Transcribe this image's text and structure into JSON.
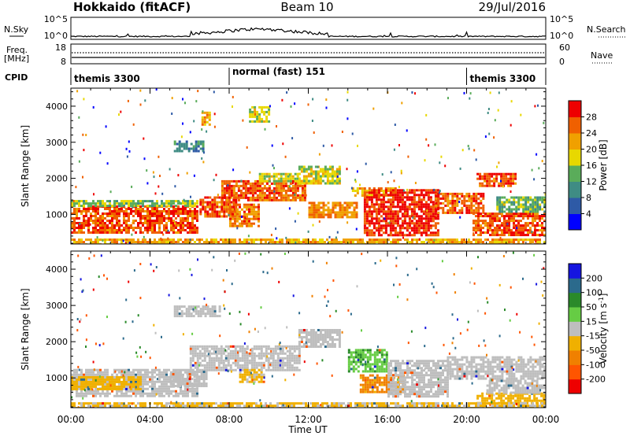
{
  "header": {
    "station": "Hokkaido (fitACF)",
    "beam": "Beam 10",
    "date": "29/Jul/2016"
  },
  "strip_labels": {
    "nsky": "N.Sky",
    "nsky_top": "10^5",
    "nsky_bottom": "10^0",
    "freq_line1": "Freq.",
    "freq_line2": "[MHz]",
    "freq_top": "18",
    "freq_bottom": "8",
    "cpid": "CPID",
    "nsearch": "N.Search",
    "nsearch_top": "10^5",
    "nsearch_bottom": "10^0",
    "nave": "Nave",
    "nave_top": "60",
    "nave_bottom": "0"
  },
  "cpid_segments": [
    {
      "label": "themis 3300",
      "start": 0,
      "end": 8
    },
    {
      "label": "normal (fast) 151",
      "start": 8,
      "end": 20
    },
    {
      "label": "themis 3300",
      "start": 20,
      "end": 24
    }
  ],
  "chart_data": [
    {
      "type": "heatmap",
      "panel": "power",
      "xlabel": "",
      "ylabel": "Slant Range [km]",
      "xlim": [
        0,
        24
      ],
      "ylim": [
        180,
        4500
      ],
      "yticks": [
        1000,
        2000,
        3000,
        4000
      ],
      "colorbar": {
        "label": "Power [dB]",
        "levels": [
          0,
          4,
          8,
          12,
          16,
          20,
          24,
          28,
          32
        ],
        "tick_labels": [
          "4",
          "8",
          "12",
          "16",
          "20",
          "24",
          "28"
        ],
        "colors": [
          "#0000ff",
          "#2e5aa6",
          "#3f8c84",
          "#5aac5a",
          "#e8d800",
          "#f0a000",
          "#f06000",
          "#ee0000"
        ]
      },
      "regions": [
        {
          "t0": 0.0,
          "t1": 6.4,
          "r0": 480,
          "r1": 1250,
          "level": 27
        },
        {
          "t0": 0.0,
          "t1": 6.4,
          "r0": 1250,
          "r1": 1400,
          "level": 15
        },
        {
          "t0": 6.5,
          "t1": 8.4,
          "r0": 950,
          "r1": 1500,
          "level": 27
        },
        {
          "t0": 7.6,
          "t1": 11.8,
          "r0": 1400,
          "r1": 1950,
          "level": 26
        },
        {
          "t0": 8.0,
          "t1": 9.5,
          "r0": 700,
          "r1": 1300,
          "level": 25
        },
        {
          "t0": 9.5,
          "t1": 11.5,
          "r0": 1900,
          "r1": 2150,
          "level": 17
        },
        {
          "t0": 11.5,
          "t1": 13.6,
          "r0": 1850,
          "r1": 2350,
          "level": 18
        },
        {
          "t0": 12.0,
          "t1": 14.4,
          "r0": 950,
          "r1": 1350,
          "level": 24
        },
        {
          "t0": 14.2,
          "t1": 16.4,
          "r0": 1500,
          "r1": 1750,
          "level": 22
        },
        {
          "t0": 14.8,
          "t1": 18.6,
          "r0": 450,
          "r1": 1700,
          "level": 29
        },
        {
          "t0": 18.4,
          "t1": 20.8,
          "r0": 1050,
          "r1": 1600,
          "level": 26
        },
        {
          "t0": 20.3,
          "t1": 24.0,
          "r0": 450,
          "r1": 1050,
          "level": 27
        },
        {
          "t0": 21.5,
          "t1": 24.0,
          "r0": 1100,
          "r1": 1500,
          "level": 14
        },
        {
          "t0": 20.5,
          "t1": 22.5,
          "r0": 1800,
          "r1": 2150,
          "level": 27
        },
        {
          "t0": 6.6,
          "t1": 7.0,
          "r0": 3500,
          "r1": 3850,
          "level": 22
        },
        {
          "t0": 5.2,
          "t1": 6.7,
          "r0": 2750,
          "r1": 3050,
          "level": 10
        },
        {
          "t0": 9.0,
          "t1": 10.0,
          "r0": 3600,
          "r1": 4000,
          "level": 17
        },
        {
          "t0": 0.0,
          "t1": 24.0,
          "r0": 190,
          "r1": 330,
          "level": 22
        }
      ]
    },
    {
      "type": "heatmap",
      "panel": "velocity",
      "xlabel": "Time UT",
      "ylabel": "Slant Range [km]",
      "xlim": [
        0,
        24
      ],
      "ylim": [
        180,
        4500
      ],
      "xticks": [
        "00:00",
        "04:00",
        "08:00",
        "12:00",
        "16:00",
        "20:00",
        "00:00"
      ],
      "yticks": [
        1000,
        2000,
        3000,
        4000
      ],
      "colorbar": {
        "label": "Velocity [m s",
        "label_sup": "-1",
        "label_end": "]",
        "levels": [
          -250,
          -200,
          -100,
          -50,
          -15,
          15,
          50,
          100,
          200,
          250
        ],
        "tick_labels": [
          "200",
          "100",
          "50",
          "15",
          "-15",
          "-50",
          "-100",
          "-200"
        ],
        "colors": [
          "#ee0000",
          "#ff5500",
          "#f08000",
          "#f0b000",
          "#bebebe",
          "#66cc44",
          "#2a8a2a",
          "#2b6a8c",
          "#1515e0"
        ]
      },
      "regions": [
        {
          "t0": 0.0,
          "t1": 6.4,
          "r0": 480,
          "r1": 1250,
          "value": 0
        },
        {
          "t0": 0.0,
          "t1": 3.5,
          "r0": 700,
          "r1": 1050,
          "value": -30
        },
        {
          "t0": 6.0,
          "t1": 11.5,
          "r0": 1200,
          "r1": 1900,
          "value": 0
        },
        {
          "t0": 5.0,
          "t1": 6.8,
          "r0": 800,
          "r1": 1200,
          "value": 0
        },
        {
          "t0": 8.5,
          "t1": 9.8,
          "r0": 900,
          "r1": 1250,
          "value": -25
        },
        {
          "t0": 11.5,
          "t1": 13.6,
          "r0": 1850,
          "r1": 2350,
          "value": 0
        },
        {
          "t0": 14.0,
          "t1": 16.0,
          "r0": 1200,
          "r1": 1800,
          "value": 40
        },
        {
          "t0": 14.6,
          "t1": 16.8,
          "r0": 600,
          "r1": 1100,
          "value": -60
        },
        {
          "t0": 16.0,
          "t1": 19.0,
          "r0": 500,
          "r1": 1500,
          "value": 0
        },
        {
          "t0": 19.0,
          "t1": 24.0,
          "r0": 1000,
          "r1": 1600,
          "value": 0
        },
        {
          "t0": 20.5,
          "t1": 24.0,
          "r0": 300,
          "r1": 600,
          "value": -35
        },
        {
          "t0": 21.0,
          "t1": 24.0,
          "r0": 600,
          "r1": 950,
          "value": 0
        },
        {
          "t0": 5.2,
          "t1": 7.5,
          "r0": 2700,
          "r1": 3000,
          "value": 0
        },
        {
          "t0": 0.0,
          "t1": 24.0,
          "r0": 190,
          "r1": 330,
          "value": -20
        }
      ]
    }
  ]
}
